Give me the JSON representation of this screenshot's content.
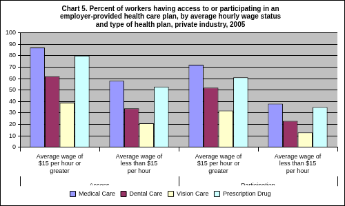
{
  "chart_data": {
    "type": "bar",
    "title": "Chart 5. Percent of workers having access to or participating in an employer-provided health care plan, by average hourly wage status and type of health plan, private industry, 2005",
    "categories": [
      "Average wage of $15 per hour or greater",
      "Average wage of less than $15 per hour",
      "Average wage of $15 per hour or greater",
      "Average wage of less than $15 per hour"
    ],
    "groups": [
      "Access",
      "Participation"
    ],
    "series": [
      {
        "name": "Medical Care",
        "color": "#9999ff",
        "values": [
          87,
          58,
          72,
          38
        ]
      },
      {
        "name": "Dental Care",
        "color": "#993366",
        "values": [
          62,
          34,
          52,
          23
        ]
      },
      {
        "name": "Vision Care",
        "color": "#ffffcc",
        "values": [
          39,
          21,
          32,
          13
        ]
      },
      {
        "name": "Prescription Drug",
        "color": "#ccffff",
        "values": [
          80,
          53,
          61,
          35
        ]
      }
    ],
    "ylim": [
      0,
      100
    ],
    "yticks": [
      0,
      10,
      20,
      30,
      40,
      50,
      60,
      70,
      80,
      90,
      100
    ],
    "grid": true,
    "legend": "bottom"
  }
}
